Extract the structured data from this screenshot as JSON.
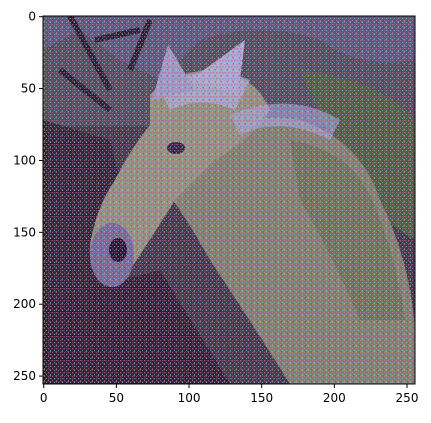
{
  "figure": {
    "image_description_note": "",
    "x_ticks": [
      "0",
      "50",
      "100",
      "150",
      "200",
      "250"
    ],
    "y_ticks": [
      "0",
      "50",
      "100",
      "150",
      "200",
      "250"
    ]
  }
}
